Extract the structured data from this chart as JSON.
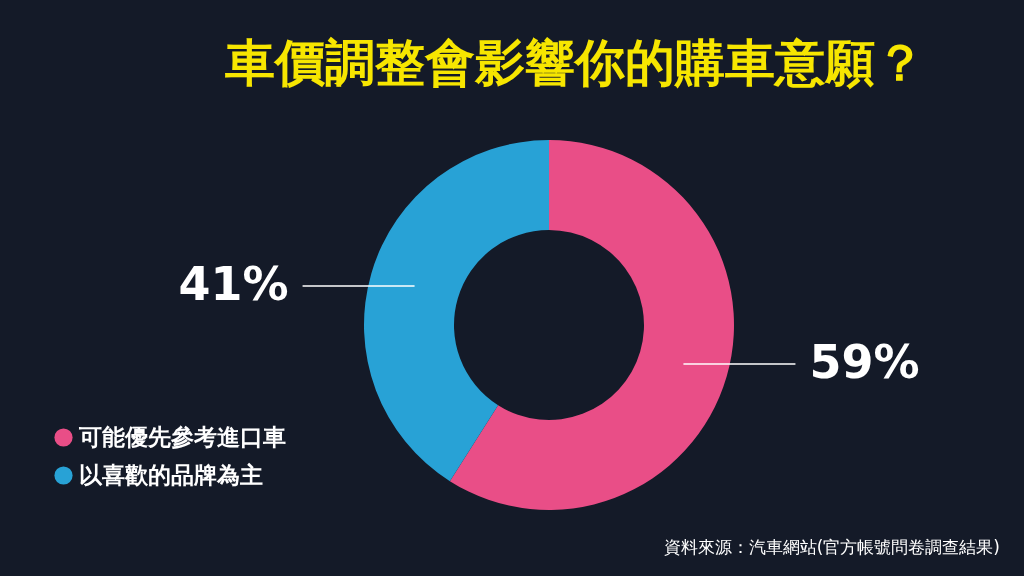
{
  "chart_data": {
    "type": "donut",
    "title": "車價調整會影響你的購車意願？",
    "categories": [
      "可能優先參考進口車",
      "以喜歡的品牌為主"
    ],
    "values": [
      59,
      41
    ],
    "colors": [
      "#e94e87",
      "#28a2d6"
    ],
    "value_labels": [
      "59%",
      "41%"
    ],
    "legend": "bottom left",
    "annotations": [
      "資料來源：汽車網站(官方帳號問卷調查結果)"
    ]
  }
}
